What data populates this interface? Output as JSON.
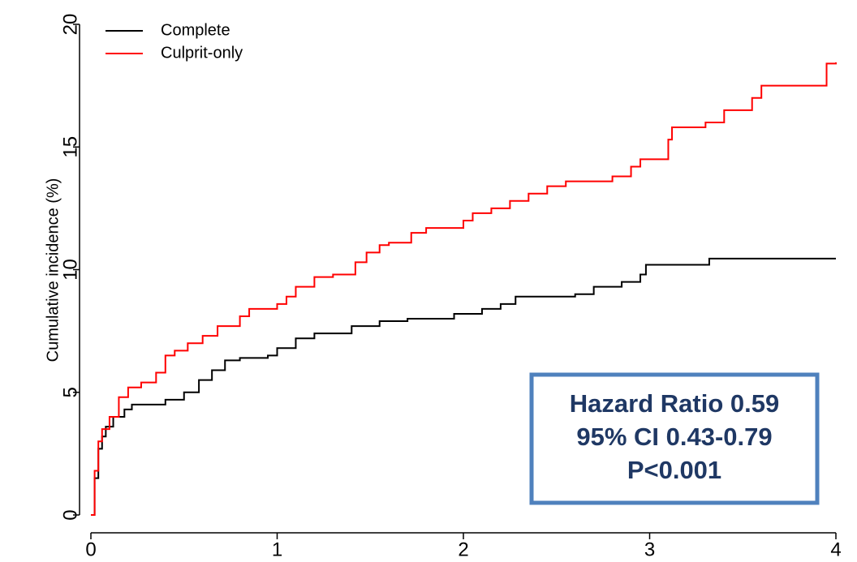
{
  "chart_data": {
    "type": "line",
    "step": true,
    "y_label": "Cumulative incidence (%)",
    "xlim": [
      0,
      4
    ],
    "xticks": [
      0,
      1,
      2,
      3,
      4
    ],
    "ylim": [
      0,
      20
    ],
    "yticks": [
      0,
      5,
      10,
      15,
      20
    ],
    "legend": "top-left",
    "annotation": [
      "Hazard Ratio 0.59",
      "95% CI 0.43-0.79",
      "P<0.001"
    ],
    "series": [
      {
        "name": "Complete",
        "color": "#000000",
        "x": [
          0,
          0.02,
          0.04,
          0.06,
          0.08,
          0.12,
          0.18,
          0.22,
          0.4,
          0.5,
          0.58,
          0.65,
          0.72,
          0.8,
          0.95,
          1.0,
          1.1,
          1.2,
          1.4,
          1.55,
          1.7,
          1.95,
          2.1,
          2.2,
          2.28,
          2.6,
          2.7,
          2.85,
          2.95,
          2.98,
          3.32,
          4.0
        ],
        "values": [
          0,
          1.5,
          2.7,
          3.2,
          3.6,
          4.0,
          4.3,
          4.5,
          4.7,
          5.0,
          5.5,
          5.9,
          6.3,
          6.4,
          6.5,
          6.8,
          7.2,
          7.4,
          7.7,
          7.9,
          8.0,
          8.2,
          8.4,
          8.6,
          8.9,
          9.0,
          9.3,
          9.5,
          9.8,
          10.2,
          10.45,
          10.45
        ]
      },
      {
        "name": "Culprit-only",
        "color": "#ff0000",
        "x": [
          0,
          0.02,
          0.04,
          0.06,
          0.1,
          0.15,
          0.2,
          0.27,
          0.35,
          0.4,
          0.45,
          0.52,
          0.6,
          0.68,
          0.8,
          0.85,
          1.0,
          1.05,
          1.1,
          1.2,
          1.3,
          1.42,
          1.48,
          1.55,
          1.6,
          1.72,
          1.8,
          2.0,
          2.05,
          2.15,
          2.25,
          2.35,
          2.45,
          2.55,
          2.8,
          2.9,
          2.95,
          3.1,
          3.12,
          3.3,
          3.4,
          3.55,
          3.6,
          3.82,
          3.95,
          4.0
        ],
        "values": [
          0,
          1.8,
          3.0,
          3.5,
          4.0,
          4.8,
          5.2,
          5.4,
          5.8,
          6.5,
          6.7,
          7.0,
          7.3,
          7.7,
          8.1,
          8.4,
          8.6,
          8.9,
          9.3,
          9.7,
          9.8,
          10.3,
          10.7,
          11.0,
          11.1,
          11.5,
          11.7,
          12.0,
          12.3,
          12.5,
          12.8,
          13.1,
          13.4,
          13.6,
          13.8,
          14.2,
          14.5,
          15.3,
          15.8,
          16.0,
          16.5,
          17.0,
          17.5,
          17.5,
          18.4,
          18.45
        ]
      }
    ]
  }
}
